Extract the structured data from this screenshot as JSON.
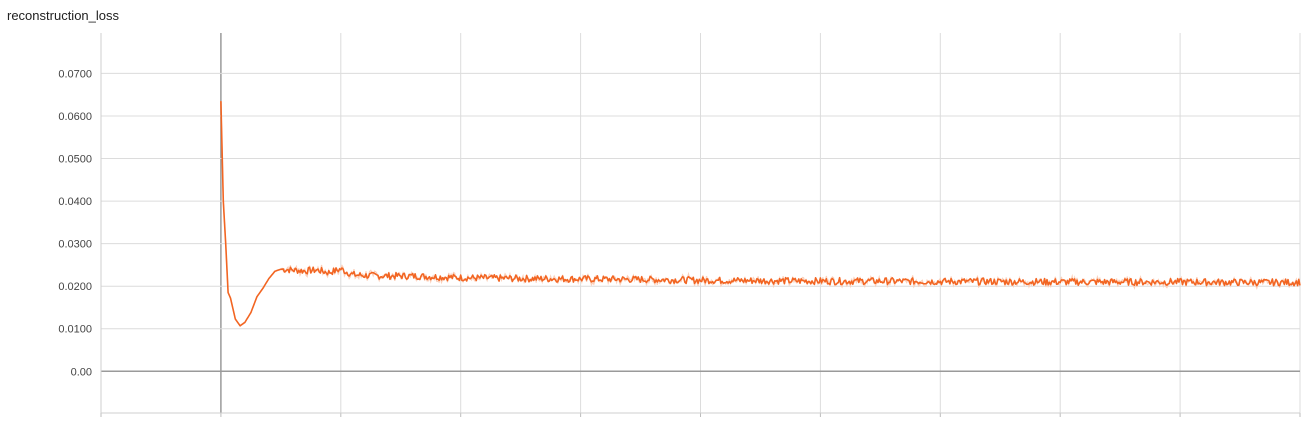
{
  "chart_data": {
    "type": "line",
    "title": "reconstruction_loss",
    "xlabel": "",
    "ylabel": "",
    "xlim": [
      -0.1,
      0.9
    ],
    "ylim": [
      -0.0098,
      0.0795
    ],
    "grid": true,
    "y_ticks": [
      {
        "value": 0.0,
        "label": "0.00"
      },
      {
        "value": 0.01,
        "label": "0.0100"
      },
      {
        "value": 0.02,
        "label": "0.0200"
      },
      {
        "value": 0.03,
        "label": "0.0300"
      },
      {
        "value": 0.04,
        "label": "0.0400"
      },
      {
        "value": 0.05,
        "label": "0.0500"
      },
      {
        "value": 0.06,
        "label": "0.0600"
      },
      {
        "value": 0.07,
        "label": "0.0700"
      }
    ],
    "x_ticks": [
      -0.1,
      0.0,
      0.1,
      0.2,
      0.3,
      0.4,
      0.5,
      0.6,
      0.7,
      0.8,
      0.9
    ],
    "series": [
      {
        "color": "#f26522",
        "raw_color": "#fbd0bb",
        "x": [
          0.0,
          0.002,
          0.004,
          0.006,
          0.008,
          0.012,
          0.016,
          0.02,
          0.025,
          0.03,
          0.035,
          0.04,
          0.045,
          0.05,
          0.06,
          0.07,
          0.08,
          0.09,
          0.1,
          0.11,
          0.12,
          0.14,
          0.16,
          0.18,
          0.2,
          0.25,
          0.3,
          0.35,
          0.4,
          0.45,
          0.5,
          0.55,
          0.6,
          0.65,
          0.7,
          0.75,
          0.8,
          0.85,
          0.9
        ],
        "y": [
          0.0635,
          0.04,
          0.03,
          0.0185,
          0.0172,
          0.0123,
          0.0107,
          0.0115,
          0.0138,
          0.0175,
          0.0195,
          0.0218,
          0.0235,
          0.024,
          0.0238,
          0.0236,
          0.0238,
          0.0232,
          0.024,
          0.0227,
          0.0225,
          0.0224,
          0.0224,
          0.0222,
          0.022,
          0.0218,
          0.0217,
          0.0216,
          0.0214,
          0.0213,
          0.0212,
          0.0212,
          0.0211,
          0.0211,
          0.021,
          0.021,
          0.021,
          0.0209,
          0.0209
        ]
      }
    ]
  }
}
